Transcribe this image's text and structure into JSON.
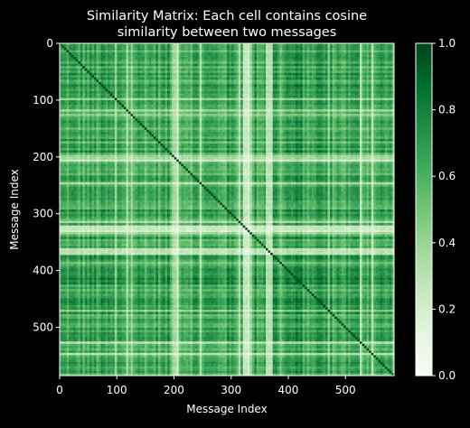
{
  "chart_data": {
    "type": "heatmap",
    "title_line1": "Similarity Matrix: Each cell contains cosine",
    "title_line2": "similarity between two messages",
    "xlabel": "Message Index",
    "ylabel": "Message Index",
    "n": 585,
    "x_ticks": [
      0,
      100,
      200,
      300,
      400,
      500
    ],
    "y_ticks": [
      0,
      100,
      200,
      300,
      400,
      500
    ],
    "colorbar": {
      "colormap": "Greens",
      "range": [
        0.0,
        1.0
      ],
      "ticks": [
        "0.0",
        "0.2",
        "0.4",
        "0.6",
        "0.8",
        "1.0"
      ],
      "colors": [
        "#f7fcf5",
        "#e5f5e0",
        "#c7e9c0",
        "#a1d99b",
        "#74c476",
        "#41ab5d",
        "#238b45",
        "#006d2c",
        "#00441b"
      ]
    },
    "values_summary": {
      "diagonal": 1.0,
      "typical_range": [
        0.5,
        0.9
      ],
      "light_bands_at_index": [
        325,
        330,
        365,
        200
      ]
    }
  }
}
